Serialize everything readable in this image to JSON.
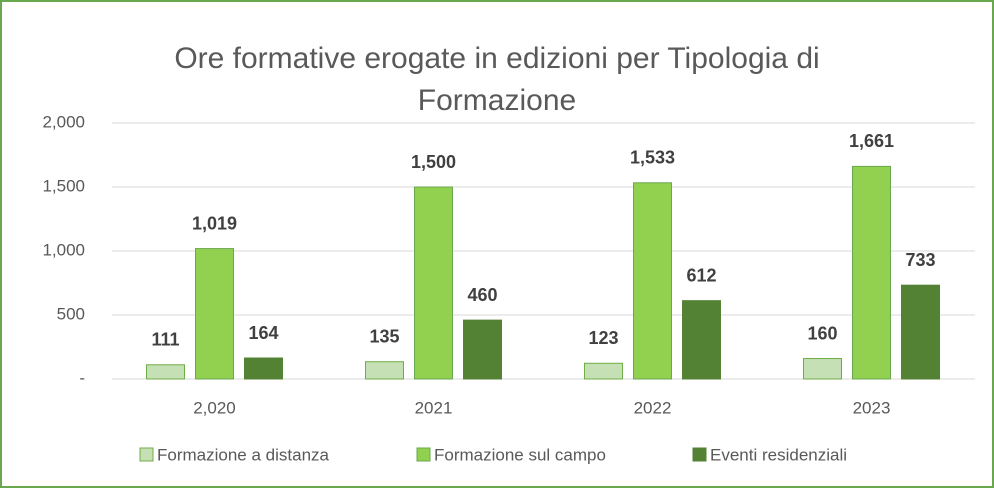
{
  "chart_data": {
    "type": "bar",
    "title": "Ore formative erogate in edizioni per Tipologia di Formazione",
    "categories": [
      "2,020",
      "2021",
      "2022",
      "2023"
    ],
    "series": [
      {
        "name": "Formazione a distanza",
        "color": "#c5e0b4",
        "values": [
          111,
          135,
          123,
          160
        ],
        "value_labels": [
          "111",
          "135",
          "123",
          "160"
        ]
      },
      {
        "name": "Formazione sul campo",
        "color": "#92d050",
        "values": [
          1019,
          1500,
          1533,
          1661
        ],
        "value_labels": [
          "1,019",
          "1,500",
          "1,533",
          "1,661"
        ]
      },
      {
        "name": "Eventi residenziali",
        "color": "#548235",
        "values": [
          164,
          460,
          612,
          733
        ],
        "value_labels": [
          "164",
          "460",
          "612",
          "733"
        ]
      }
    ],
    "ylim": [
      0,
      2000
    ],
    "yticks": [
      {
        "value": 0,
        "label": "-"
      },
      500,
      {
        "value": 1000,
        "label": "1,000"
      },
      {
        "value": 1500,
        "label": "1,500"
      },
      {
        "value": 2000,
        "label": "2,000"
      }
    ],
    "grid": true,
    "legend": "bottom"
  }
}
